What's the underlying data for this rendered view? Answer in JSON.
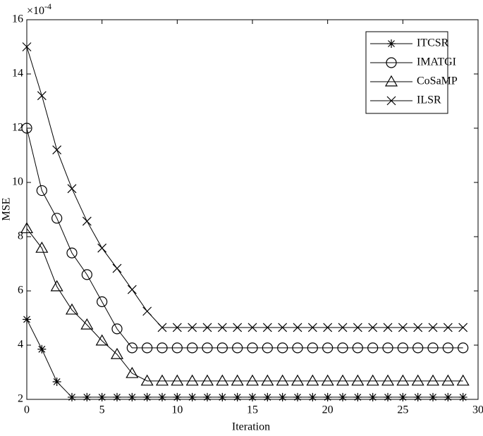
{
  "chart_data": {
    "type": "line",
    "y_label": "MSE",
    "x_label": "Iteration",
    "y_scale_base": "×10",
    "y_scale_exponent": "-4",
    "x": [
      0,
      1,
      2,
      3,
      4,
      5,
      6,
      7,
      8,
      9,
      10,
      11,
      12,
      13,
      14,
      15,
      16,
      17,
      18,
      19,
      20,
      21,
      22,
      23,
      24,
      25,
      26,
      27,
      28,
      29
    ],
    "series": [
      {
        "name": "ITCSR",
        "color": "#000000",
        "marker": "asterisk",
        "values": [
          4.95,
          3.85,
          2.65,
          2.08,
          2.08,
          2.08,
          2.08,
          2.08,
          2.08,
          2.08,
          2.08,
          2.08,
          2.08,
          2.08,
          2.08,
          2.08,
          2.08,
          2.08,
          2.08,
          2.08,
          2.08,
          2.08,
          2.08,
          2.08,
          2.08,
          2.08,
          2.08,
          2.08,
          2.08,
          2.08
        ]
      },
      {
        "name": "IMATGI",
        "color": "#000000",
        "marker": "circle",
        "values": [
          12.0,
          9.7,
          8.68,
          7.4,
          6.6,
          5.6,
          4.6,
          3.9,
          3.9,
          3.9,
          3.9,
          3.9,
          3.9,
          3.9,
          3.9,
          3.9,
          3.9,
          3.9,
          3.9,
          3.9,
          3.9,
          3.9,
          3.9,
          3.9,
          3.9,
          3.9,
          3.9,
          3.9,
          3.9,
          3.9
        ]
      },
      {
        "name": "CoSaMP",
        "color": "#000000",
        "marker": "triangle",
        "values": [
          8.3,
          7.58,
          6.16,
          5.3,
          4.75,
          4.16,
          3.66,
          2.96,
          2.68,
          2.68,
          2.68,
          2.68,
          2.68,
          2.68,
          2.68,
          2.68,
          2.68,
          2.68,
          2.68,
          2.68,
          2.68,
          2.68,
          2.68,
          2.68,
          2.68,
          2.68,
          2.68,
          2.68,
          2.68,
          2.68
        ]
      },
      {
        "name": "ILSR",
        "color": "#000000",
        "marker": "x",
        "values": [
          15.0,
          13.2,
          11.2,
          9.77,
          8.57,
          7.58,
          6.83,
          6.05,
          5.25,
          4.65,
          4.65,
          4.65,
          4.65,
          4.65,
          4.65,
          4.65,
          4.65,
          4.65,
          4.65,
          4.65,
          4.65,
          4.65,
          4.65,
          4.65,
          4.65,
          4.65,
          4.65,
          4.65,
          4.65,
          4.65
        ]
      }
    ],
    "xlim": [
      0,
      30
    ],
    "xticks": [
      0,
      5,
      10,
      15,
      20,
      25,
      30
    ],
    "ylim": [
      2,
      16
    ],
    "yticks": [
      2,
      4,
      6,
      8,
      10,
      12,
      14,
      16
    ],
    "legend": "top-right",
    "grid": false
  }
}
